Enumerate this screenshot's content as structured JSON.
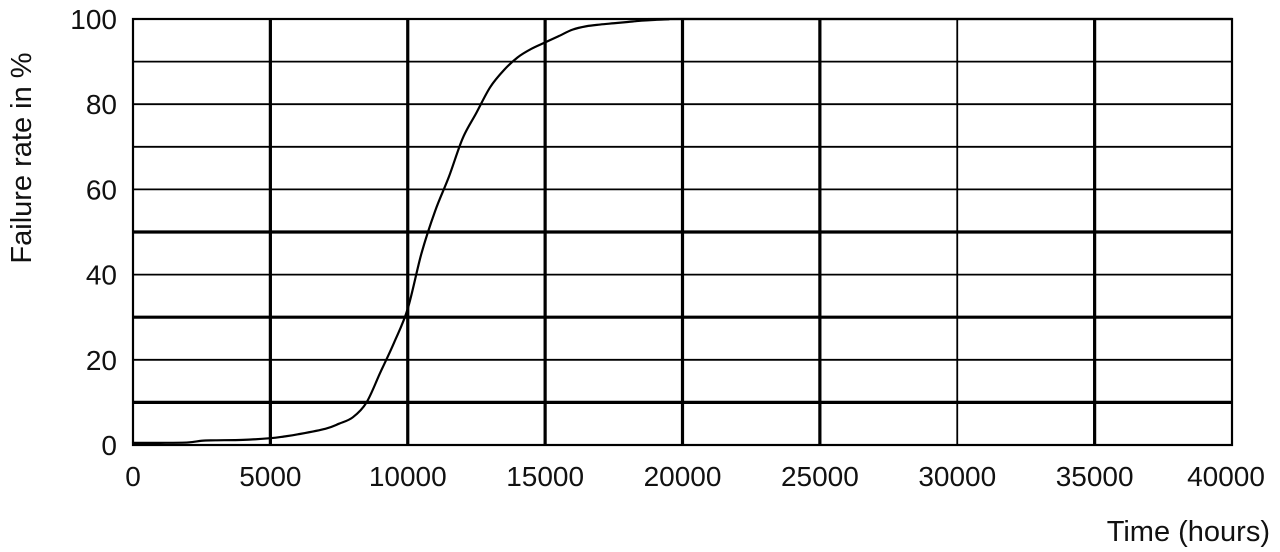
{
  "chart_data": {
    "type": "line",
    "title": "",
    "xlabel": "Time (hours)",
    "ylabel": "Failure rate in %",
    "xlim": [
      0,
      40000
    ],
    "ylim": [
      0,
      100
    ],
    "x_ticks": [
      0,
      5000,
      10000,
      15000,
      20000,
      25000,
      30000,
      35000,
      40000
    ],
    "y_ticks": [
      0,
      20,
      40,
      60,
      80,
      100
    ],
    "x_tick_labels": [
      "0",
      "5000",
      "10000",
      "15000",
      "20000",
      "25000",
      "30000",
      "35000",
      "40000"
    ],
    "y_tick_labels": [
      "0",
      "20",
      "40",
      "60",
      "80",
      "100"
    ],
    "grid": true,
    "grid_minor_y_step": 10,
    "heavy_gridlines_x": [
      5000,
      10000,
      15000,
      20000,
      25000,
      35000
    ],
    "heavy_gridlines_y": [
      10,
      30,
      50
    ],
    "series": [
      {
        "x": [
          0,
          1000,
          2000,
          2500,
          3000,
          4000,
          5000,
          5500,
          6000,
          7000,
          7500,
          8000,
          8500,
          9000,
          9500,
          10000,
          10500,
          11000,
          11500,
          12000,
          12500,
          13000,
          13500,
          14000,
          14500,
          15000,
          15500,
          16000,
          16500,
          17000,
          17500,
          18000,
          18500,
          19000,
          19500,
          20000,
          40000
        ],
        "y": [
          0.5,
          0.5,
          0.6,
          1.0,
          1.1,
          1.2,
          1.6,
          2.0,
          2.5,
          3.8,
          5.0,
          6.5,
          10,
          17,
          24,
          32,
          45,
          55,
          63,
          72,
          78,
          84,
          88,
          91,
          93,
          94.5,
          96,
          97.5,
          98.3,
          98.7,
          99.0,
          99.3,
          99.6,
          99.8,
          99.9,
          100,
          100
        ],
        "color": "#000000"
      }
    ]
  }
}
